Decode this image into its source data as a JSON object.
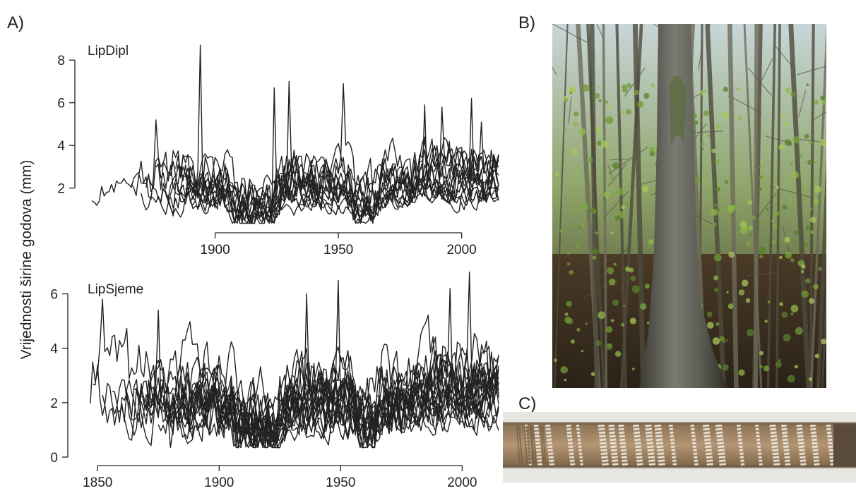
{
  "panels": {
    "a": "A)",
    "b": "B)",
    "c": "C)"
  },
  "y_axis_label": "Vrijednosti širine godova (mm)",
  "photos": {
    "forest": "oak-forest-photo",
    "core": "tree-core-photo"
  },
  "chart_data": [
    {
      "type": "line",
      "series_label": "LipDipl",
      "xlim": [
        1850,
        2015
      ],
      "x_ticks": [
        1900,
        1950,
        2000
      ],
      "ylim": [
        0.3,
        8.9
      ],
      "y_ticks": [
        2,
        4,
        6,
        8
      ],
      "grid": false,
      "series_count": 14,
      "notes_range": "first ring ~1850, peak 8.7 mm ~1894"
    },
    {
      "type": "line",
      "series_label": "LipSjeme",
      "xlim": [
        1845,
        2015
      ],
      "x_ticks": [
        1850,
        1900,
        1950,
        2000
      ],
      "ylim": [
        0,
        7
      ],
      "y_ticks": [
        0,
        2,
        4,
        6
      ],
      "grid": false,
      "series_count": 18,
      "notes_range": "peak 6.8 mm ~2003"
    }
  ]
}
